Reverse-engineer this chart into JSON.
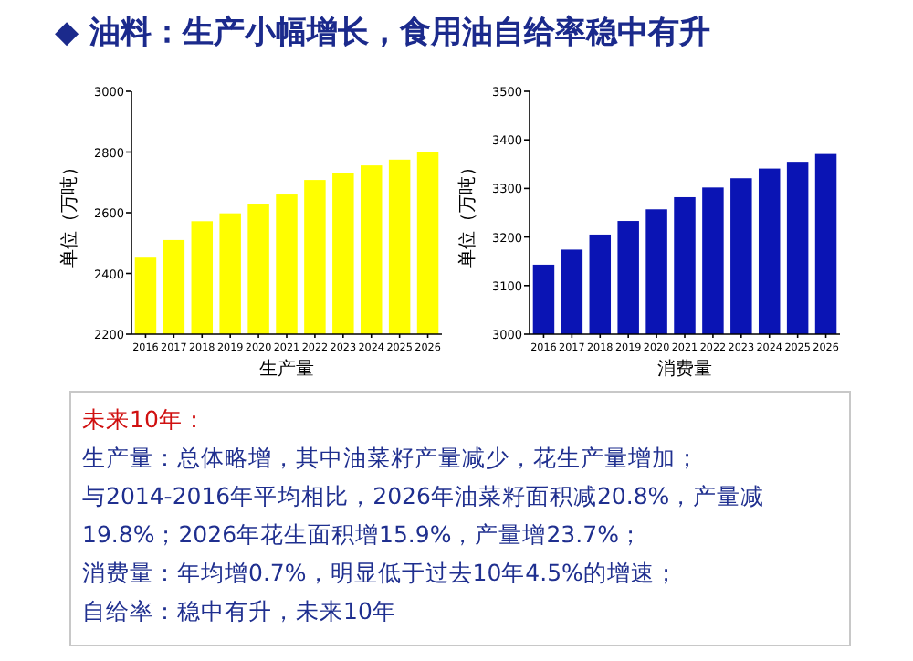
{
  "chart_data": [
    {
      "type": "bar",
      "title": "◆ 油料：生产小幅增长，食用油自给率稳中有升",
      "xlabel": "生产量",
      "ylabel": "单位（万吨）",
      "categories": [
        "2016",
        "2017",
        "2018",
        "2019",
        "2020",
        "2021",
        "2022",
        "2023",
        "2024",
        "2025",
        "2026"
      ],
      "values": [
        2452,
        2510,
        2572,
        2598,
        2630,
        2660,
        2708,
        2732,
        2756,
        2775,
        2800
      ],
      "color": "#ffff00",
      "ylim": [
        2200,
        3000
      ],
      "yticks": [
        2200,
        2400,
        2600,
        2800,
        3000
      ]
    },
    {
      "type": "bar",
      "xlabel": "消费量",
      "ylabel": "单位（万吨）",
      "categories": [
        "2016",
        "2017",
        "2018",
        "2019",
        "2020",
        "2021",
        "2022",
        "2023",
        "2024",
        "2025",
        "2026"
      ],
      "values": [
        3143,
        3174,
        3205,
        3233,
        3257,
        3282,
        3302,
        3321,
        3341,
        3355,
        3371
      ],
      "color": "#0a14b4",
      "ylim": [
        3000,
        3500
      ],
      "yticks": [
        3000,
        3100,
        3200,
        3300,
        3400,
        3500
      ]
    },
    {
      "type": "other",
      "title": "未来10年：",
      "annotations": [
        "生产量：总体略增，其中油菜籽产量减少，花生产量增加；",
        "与2014-2016年平均相比，2026年油菜籽面积减20.8%，产量减19.8%；2026年花生面积增15.9%，产量增23.7%；",
        "消费量：年均增0.7%，明显低于过去10年4.5%的增速；",
        "自给率：稳中有升，未来10年"
      ]
    }
  ]
}
